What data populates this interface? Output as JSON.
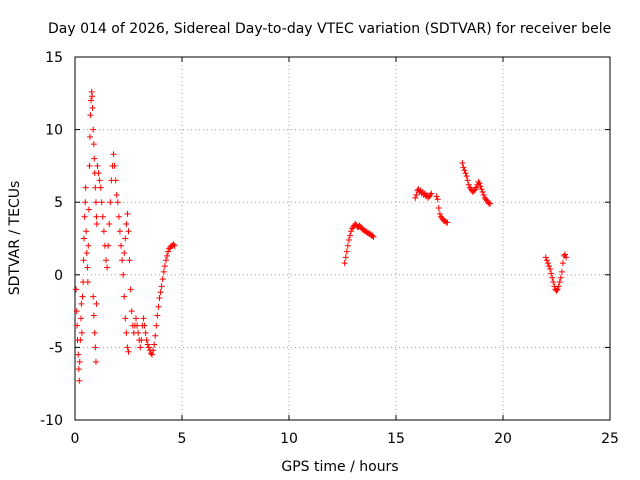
{
  "chart_data": {
    "type": "scatter",
    "title": "Day 014 of 2026, Sidereal Day-to-day VTEC variation (SDTVAR) for receiver bele",
    "xlabel": "GPS time / hours",
    "ylabel": "SDTVAR / TECUs",
    "xlim": [
      0,
      25
    ],
    "ylim": [
      -10,
      15
    ],
    "xticks": [
      0,
      5,
      10,
      15,
      20,
      25
    ],
    "yticks": [
      -10,
      -5,
      0,
      5,
      10,
      15
    ],
    "xtick_labels": [
      "0",
      "5",
      "10",
      "15",
      "20",
      "25"
    ],
    "ytick_labels": [
      "-10",
      "-5",
      "0",
      "5",
      "10",
      "15"
    ],
    "grid": true,
    "legend": "none",
    "marker": "plus",
    "color": "#ff0000",
    "series": [
      {
        "name": "SDTVAR",
        "points": [
          [
            0.05,
            -1.0
          ],
          [
            0.08,
            -2.5
          ],
          [
            0.1,
            -3.5
          ],
          [
            0.12,
            -4.5
          ],
          [
            0.15,
            -5.5
          ],
          [
            0.18,
            -6.5
          ],
          [
            0.2,
            -7.3
          ],
          [
            0.22,
            -6.0
          ],
          [
            0.25,
            -4.5
          ],
          [
            0.28,
            -3.0
          ],
          [
            0.3,
            -2.0
          ],
          [
            0.32,
            -4.0
          ],
          [
            0.35,
            -1.5
          ],
          [
            0.38,
            -0.5
          ],
          [
            0.4,
            1.0
          ],
          [
            0.42,
            2.5
          ],
          [
            0.45,
            4.0
          ],
          [
            0.48,
            5.0
          ],
          [
            0.5,
            6.0
          ],
          [
            0.52,
            3.0
          ],
          [
            0.55,
            1.5
          ],
          [
            0.58,
            0.5
          ],
          [
            0.6,
            -0.5
          ],
          [
            0.62,
            2.0
          ],
          [
            0.65,
            4.5
          ],
          [
            0.68,
            7.5
          ],
          [
            0.7,
            9.5
          ],
          [
            0.72,
            11.0
          ],
          [
            0.75,
            12.0
          ],
          [
            0.78,
            12.6
          ],
          [
            0.8,
            12.3
          ],
          [
            0.82,
            11.5
          ],
          [
            0.85,
            10.0
          ],
          [
            0.88,
            9.0
          ],
          [
            0.9,
            8.0
          ],
          [
            0.92,
            7.0
          ],
          [
            0.95,
            6.0
          ],
          [
            0.98,
            5.0
          ],
          [
            1.0,
            4.0
          ],
          [
            1.02,
            3.5
          ],
          [
            0.85,
            -1.5
          ],
          [
            0.88,
            -2.8
          ],
          [
            0.92,
            -4.0
          ],
          [
            0.95,
            -5.0
          ],
          [
            0.98,
            -6.0
          ],
          [
            1.0,
            -2.0
          ],
          [
            1.05,
            7.5
          ],
          [
            1.1,
            7.0
          ],
          [
            1.15,
            6.5
          ],
          [
            1.2,
            6.0
          ],
          [
            1.25,
            5.0
          ],
          [
            1.3,
            4.0
          ],
          [
            1.35,
            3.0
          ],
          [
            1.4,
            2.0
          ],
          [
            1.45,
            1.0
          ],
          [
            1.5,
            0.5
          ],
          [
            1.55,
            2.0
          ],
          [
            1.6,
            3.5
          ],
          [
            1.65,
            5.0
          ],
          [
            1.7,
            6.5
          ],
          [
            1.75,
            7.5
          ],
          [
            1.8,
            8.3
          ],
          [
            1.85,
            7.5
          ],
          [
            1.9,
            6.5
          ],
          [
            1.95,
            5.5
          ],
          [
            2.0,
            5.0
          ],
          [
            2.05,
            4.0
          ],
          [
            2.1,
            3.0
          ],
          [
            2.15,
            2.0
          ],
          [
            2.2,
            1.0
          ],
          [
            2.25,
            0.0
          ],
          [
            2.3,
            -1.5
          ],
          [
            2.35,
            -3.0
          ],
          [
            2.4,
            -4.0
          ],
          [
            2.45,
            -5.0
          ],
          [
            2.5,
            -5.3
          ],
          [
            2.3,
            1.5
          ],
          [
            2.35,
            2.5
          ],
          [
            2.4,
            3.5
          ],
          [
            2.45,
            4.2
          ],
          [
            2.5,
            3.0
          ],
          [
            2.55,
            1.0
          ],
          [
            2.6,
            -1.0
          ],
          [
            2.65,
            -2.5
          ],
          [
            2.7,
            -3.5
          ],
          [
            2.75,
            -4.0
          ],
          [
            2.8,
            -3.5
          ],
          [
            2.85,
            -3.0
          ],
          [
            2.9,
            -3.5
          ],
          [
            2.95,
            -4.0
          ],
          [
            3.0,
            -4.5
          ],
          [
            3.05,
            -5.0
          ],
          [
            3.1,
            -4.5
          ],
          [
            3.15,
            -3.5
          ],
          [
            3.2,
            -3.0
          ],
          [
            3.25,
            -3.5
          ],
          [
            3.3,
            -4.0
          ],
          [
            3.35,
            -4.5
          ],
          [
            3.4,
            -4.8
          ],
          [
            3.45,
            -5.0
          ],
          [
            3.5,
            -5.2
          ],
          [
            3.55,
            -5.4
          ],
          [
            3.6,
            -5.5
          ],
          [
            3.65,
            -5.2
          ],
          [
            3.7,
            -4.8
          ],
          [
            3.75,
            -4.2
          ],
          [
            3.8,
            -3.5
          ],
          [
            3.85,
            -2.8
          ],
          [
            3.9,
            -2.2
          ],
          [
            3.95,
            -1.6
          ],
          [
            4.0,
            -1.2
          ],
          [
            4.05,
            -0.8
          ],
          [
            4.1,
            -0.3
          ],
          [
            4.15,
            0.2
          ],
          [
            4.2,
            0.6
          ],
          [
            4.25,
            1.0
          ],
          [
            4.3,
            1.3
          ],
          [
            4.35,
            1.6
          ],
          [
            4.4,
            1.8
          ],
          [
            4.45,
            1.9
          ],
          [
            4.5,
            2.0
          ],
          [
            4.55,
            2.0
          ],
          [
            4.6,
            2.1
          ],
          [
            4.65,
            2.0
          ],
          [
            12.6,
            0.8
          ],
          [
            12.65,
            1.2
          ],
          [
            12.7,
            1.6
          ],
          [
            12.75,
            2.0
          ],
          [
            12.8,
            2.4
          ],
          [
            12.85,
            2.7
          ],
          [
            12.9,
            3.0
          ],
          [
            12.95,
            3.2
          ],
          [
            13.0,
            3.3
          ],
          [
            13.05,
            3.4
          ],
          [
            13.1,
            3.5
          ],
          [
            13.15,
            3.4
          ],
          [
            13.2,
            3.3
          ],
          [
            13.25,
            3.3
          ],
          [
            13.3,
            3.4
          ],
          [
            13.35,
            3.3
          ],
          [
            13.4,
            3.2
          ],
          [
            13.45,
            3.1
          ],
          [
            13.5,
            3.1
          ],
          [
            13.55,
            3.0
          ],
          [
            13.6,
            3.0
          ],
          [
            13.65,
            2.9
          ],
          [
            13.7,
            2.9
          ],
          [
            13.75,
            2.8
          ],
          [
            13.8,
            2.8
          ],
          [
            13.85,
            2.7
          ],
          [
            13.9,
            2.7
          ],
          [
            13.95,
            2.6
          ],
          [
            15.9,
            5.3
          ],
          [
            15.95,
            5.5
          ],
          [
            16.0,
            5.8
          ],
          [
            16.05,
            5.9
          ],
          [
            16.1,
            5.7
          ],
          [
            16.15,
            5.8
          ],
          [
            16.2,
            5.6
          ],
          [
            16.25,
            5.7
          ],
          [
            16.3,
            5.5
          ],
          [
            16.35,
            5.6
          ],
          [
            16.4,
            5.4
          ],
          [
            16.45,
            5.5
          ],
          [
            16.5,
            5.3
          ],
          [
            16.55,
            5.4
          ],
          [
            16.6,
            5.5
          ],
          [
            16.65,
            5.6
          ],
          [
            16.9,
            5.4
          ],
          [
            16.95,
            5.2
          ],
          [
            17.0,
            4.6
          ],
          [
            17.05,
            4.2
          ],
          [
            17.1,
            4.0
          ],
          [
            17.15,
            3.9
          ],
          [
            17.2,
            3.8
          ],
          [
            17.25,
            3.7
          ],
          [
            17.3,
            3.7
          ],
          [
            17.35,
            3.6
          ],
          [
            17.4,
            3.6
          ],
          [
            18.1,
            7.7
          ],
          [
            18.15,
            7.4
          ],
          [
            18.2,
            7.2
          ],
          [
            18.25,
            7.0
          ],
          [
            18.3,
            6.8
          ],
          [
            18.35,
            6.5
          ],
          [
            18.4,
            6.2
          ],
          [
            18.45,
            6.0
          ],
          [
            18.5,
            5.9
          ],
          [
            18.55,
            5.8
          ],
          [
            18.6,
            5.7
          ],
          [
            18.65,
            5.8
          ],
          [
            18.7,
            5.9
          ],
          [
            18.75,
            6.0
          ],
          [
            18.8,
            6.2
          ],
          [
            18.85,
            6.4
          ],
          [
            18.9,
            6.3
          ],
          [
            18.95,
            6.1
          ],
          [
            19.0,
            5.9
          ],
          [
            19.05,
            5.7
          ],
          [
            19.1,
            5.5
          ],
          [
            19.15,
            5.3
          ],
          [
            19.2,
            5.2
          ],
          [
            19.25,
            5.1
          ],
          [
            19.3,
            5.0
          ],
          [
            19.35,
            4.9
          ],
          [
            19.4,
            4.9
          ],
          [
            22.0,
            1.2
          ],
          [
            22.05,
            1.0
          ],
          [
            22.1,
            0.8
          ],
          [
            22.15,
            0.6
          ],
          [
            22.2,
            0.4
          ],
          [
            22.25,
            0.1
          ],
          [
            22.3,
            -0.2
          ],
          [
            22.35,
            -0.5
          ],
          [
            22.4,
            -0.8
          ],
          [
            22.45,
            -1.0
          ],
          [
            22.5,
            -1.1
          ],
          [
            22.55,
            -1.0
          ],
          [
            22.6,
            -0.8
          ],
          [
            22.65,
            -0.5
          ],
          [
            22.7,
            -0.2
          ],
          [
            22.75,
            0.2
          ],
          [
            22.8,
            0.8
          ],
          [
            22.85,
            1.3
          ],
          [
            22.9,
            1.4
          ],
          [
            22.95,
            1.2
          ]
        ]
      }
    ]
  }
}
